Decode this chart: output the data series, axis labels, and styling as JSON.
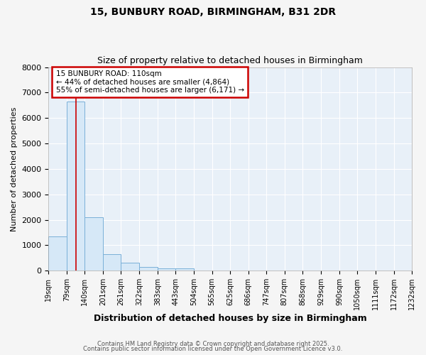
{
  "title1": "15, BUNBURY ROAD, BIRMINGHAM, B31 2DR",
  "title2": "Size of property relative to detached houses in Birmingham",
  "xlabel": "Distribution of detached houses by size in Birmingham",
  "ylabel": "Number of detached properties",
  "bar_color": "#d6e8f7",
  "bar_edge_color": "#7ab0d8",
  "background_color": "#e8f0f8",
  "fig_background": "#f5f5f5",
  "grid_color": "#ffffff",
  "red_line_x": 110,
  "annotation_text": "15 BUNBURY ROAD: 110sqm\n← 44% of detached houses are smaller (4,864)\n55% of semi-detached houses are larger (6,171) →",
  "annotation_box_color": "#ffffff",
  "annotation_box_edge": "#cc0000",
  "bins": [
    19,
    79,
    140,
    201,
    261,
    322,
    383,
    443,
    504,
    565,
    625,
    686,
    747,
    807,
    868,
    929,
    990,
    1050,
    1111,
    1172,
    1232
  ],
  "bar_heights": [
    1340,
    6650,
    2090,
    640,
    305,
    135,
    90,
    90,
    0,
    0,
    0,
    0,
    0,
    0,
    0,
    0,
    0,
    0,
    0,
    0
  ],
  "ylim": [
    0,
    8000
  ],
  "yticks": [
    0,
    1000,
    2000,
    3000,
    4000,
    5000,
    6000,
    7000,
    8000
  ],
  "tick_labels": [
    "19sqm",
    "79sqm",
    "140sqm",
    "201sqm",
    "261sqm",
    "322sqm",
    "383sqm",
    "443sqm",
    "504sqm",
    "565sqm",
    "625sqm",
    "686sqm",
    "747sqm",
    "807sqm",
    "868sqm",
    "929sqm",
    "990sqm",
    "1050sqm",
    "1111sqm",
    "1172sqm",
    "1232sqm"
  ],
  "footer1": "Contains HM Land Registry data © Crown copyright and database right 2025.",
  "footer2": "Contains public sector information licensed under the Open Government Licence v3.0."
}
